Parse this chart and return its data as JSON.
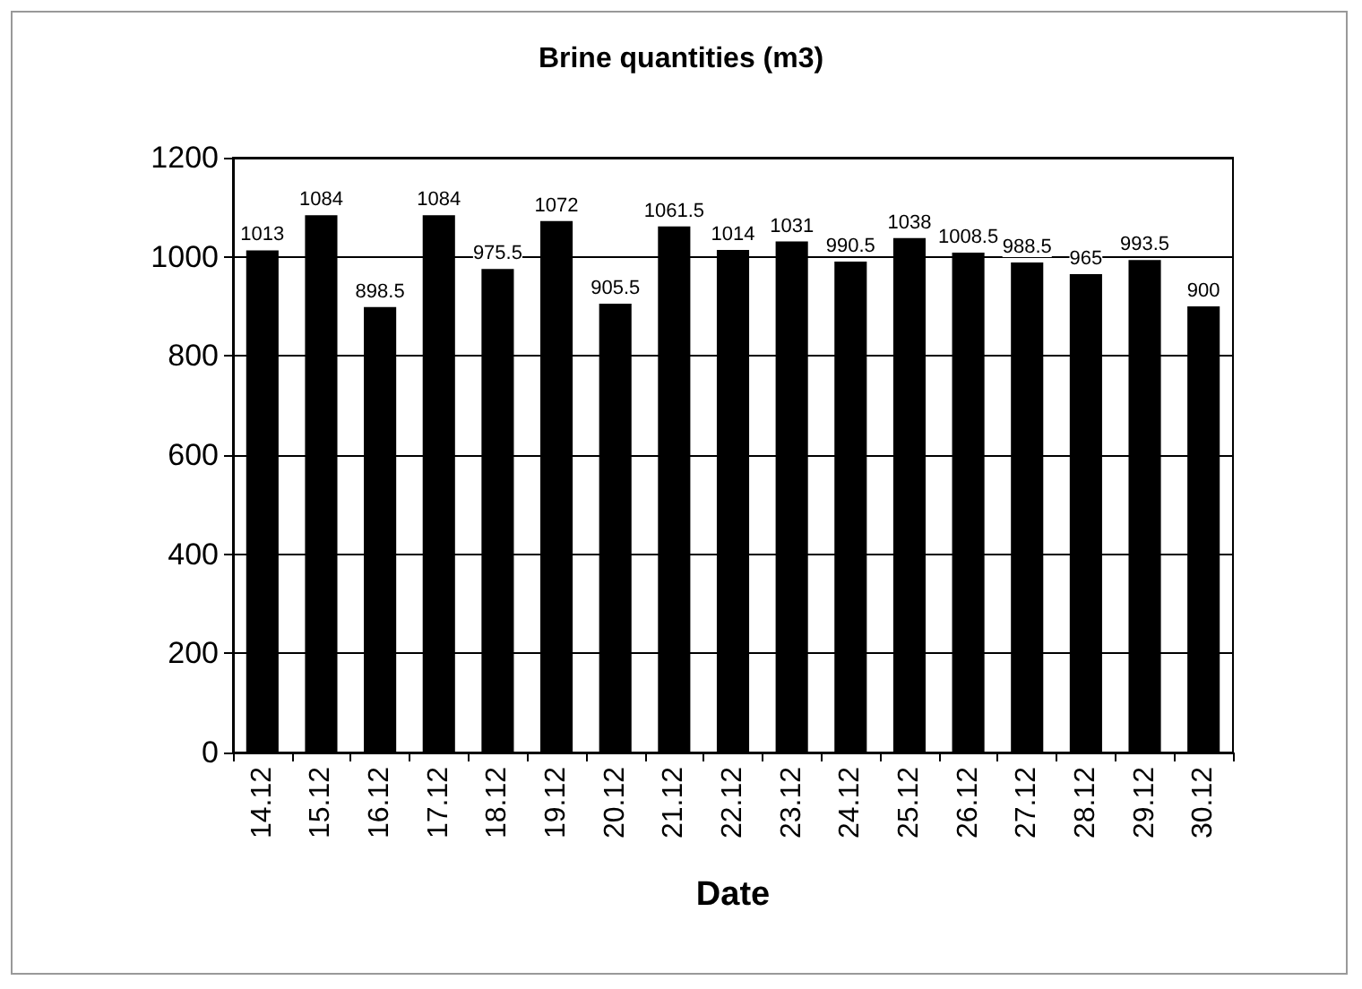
{
  "chart_data": {
    "type": "bar",
    "title": "Brine quantities (m3)",
    "xlabel": "Date",
    "categories": [
      "14.12",
      "15.12",
      "16.12",
      "17.12",
      "18.12",
      "19.12",
      "20.12",
      "21.12",
      "22.12",
      "23.12",
      "24.12",
      "25.12",
      "26.12",
      "27.12",
      "28.12",
      "29.12",
      "30.12"
    ],
    "values": [
      1013,
      1084,
      898.5,
      1084,
      975.5,
      1072,
      905.5,
      1061.5,
      1014,
      1031,
      990.5,
      1038,
      1008.5,
      988.5,
      965,
      993.5,
      900
    ],
    "color": "#000000",
    "ylim": [
      0,
      1200
    ],
    "yticks": [
      0,
      200,
      400,
      600,
      800,
      1000,
      1200
    ],
    "grid": "y",
    "data_labels": true
  }
}
